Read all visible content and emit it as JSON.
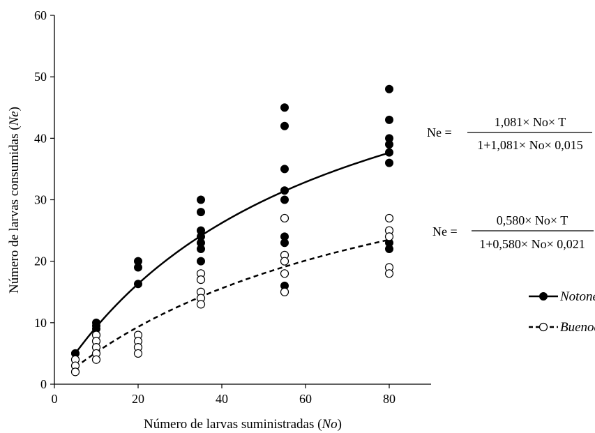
{
  "chart_data": {
    "type": "scatter",
    "title": "",
    "xlabel": {
      "text": "Número de larvas suministradas (",
      "var": "No",
      "close": ")"
    },
    "ylabel": {
      "text": "Número de larvas consumidas (",
      "var": "Ne",
      "close": ")"
    },
    "xlim": [
      0,
      90
    ],
    "ylim": [
      0,
      60
    ],
    "xticks": [
      0,
      20,
      40,
      60,
      80
    ],
    "yticks": [
      0,
      10,
      20,
      30,
      40,
      50,
      60
    ],
    "xtick_labels": [
      "0",
      "20",
      "40",
      "60",
      "80"
    ],
    "ytick_labels": [
      "0",
      "10",
      "20",
      "30",
      "40",
      "50",
      "60"
    ],
    "grid": false,
    "legend": "right",
    "series": [
      {
        "name": "Notonecta peruviana",
        "marker": "filled-circle",
        "line": "solid",
        "color": "#000000",
        "points": [
          [
            5,
            5
          ],
          [
            5,
            5
          ],
          [
            10,
            10
          ],
          [
            10,
            9.5
          ],
          [
            10,
            9
          ],
          [
            20,
            20
          ],
          [
            20,
            19
          ],
          [
            20,
            16.3
          ],
          [
            35,
            30
          ],
          [
            35,
            28
          ],
          [
            35,
            25
          ],
          [
            35,
            24
          ],
          [
            35,
            23
          ],
          [
            35,
            22
          ],
          [
            35,
            20
          ],
          [
            55,
            45
          ],
          [
            55,
            42
          ],
          [
            55,
            35
          ],
          [
            55,
            31.5
          ],
          [
            55,
            30
          ],
          [
            55,
            24
          ],
          [
            55,
            23
          ],
          [
            55,
            16
          ],
          [
            80,
            48
          ],
          [
            80,
            43
          ],
          [
            80,
            40
          ],
          [
            80,
            39
          ],
          [
            80,
            37.7
          ],
          [
            80,
            36
          ],
          [
            80,
            23
          ],
          [
            80,
            22
          ]
        ],
        "fit": {
          "a": 1.081,
          "Th": 0.015,
          "T": 1,
          "x": [
            5,
            10,
            20,
            35,
            55,
            80
          ],
          "y": [
            5.01,
            9.76,
            16.3,
            24.3,
            31.5,
            37.7
          ]
        }
      },
      {
        "name": "Buenoa fasciata",
        "marker": "open-circle",
        "line": "dashed",
        "color": "#000000",
        "points": [
          [
            5,
            4
          ],
          [
            5,
            3
          ],
          [
            5,
            2
          ],
          [
            10,
            8
          ],
          [
            10,
            7
          ],
          [
            10,
            6
          ],
          [
            10,
            5
          ],
          [
            10,
            4
          ],
          [
            20,
            8
          ],
          [
            20,
            7
          ],
          [
            20,
            6
          ],
          [
            20,
            5
          ],
          [
            35,
            18
          ],
          [
            35,
            17
          ],
          [
            35,
            15
          ],
          [
            35,
            14
          ],
          [
            35,
            13
          ],
          [
            55,
            27
          ],
          [
            55,
            21
          ],
          [
            55,
            20
          ],
          [
            55,
            18
          ],
          [
            55,
            15
          ],
          [
            80,
            27
          ],
          [
            80,
            25
          ],
          [
            80,
            24
          ],
          [
            80,
            19
          ],
          [
            80,
            18
          ]
        ],
        "fit": {
          "a": 0.58,
          "Th": 0.021,
          "T": 1,
          "x": [
            5,
            10,
            20,
            35,
            55,
            80
          ],
          "y": [
            2.64,
            5.1,
            9.3,
            14.6,
            19.4,
            23.6
          ]
        }
      }
    ],
    "equations": [
      {
        "lhs": "Ne =",
        "numerator": "1,081× No× T",
        "denominator": "1+1,081× No× 0,015"
      },
      {
        "lhs": "Ne =",
        "numerator": "0,580× No× T",
        "denominator": "1+0,580× No× 0,021"
      }
    ]
  }
}
